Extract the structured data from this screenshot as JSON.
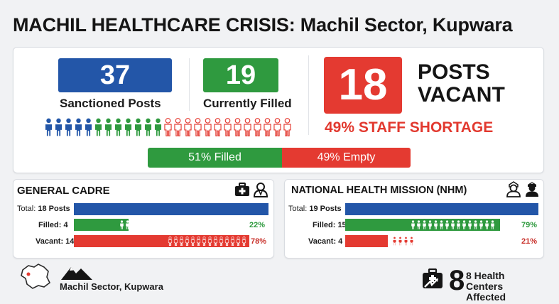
{
  "title": "MACHIL HEALTHCARE CRISIS: Machil Sector, Kupwara",
  "summary": {
    "sanctioned_value": "37",
    "sanctioned_label": "Sanctioned Posts",
    "filled_value": "19",
    "filled_label": "Currently Filled",
    "vacant_value": "18",
    "vacant_label_line1": "POSTS",
    "vacant_label_line2": "VACANT",
    "shortage_text": "49% STAFF SHORTAGE",
    "people_icons": {
      "blue": 5,
      "green": 7,
      "red_outline": 13
    },
    "fill_bar": {
      "filled_text": "51% Filled",
      "empty_text": "49% Empty",
      "filled_fraction": 0.51
    }
  },
  "general_cadre": {
    "title": "GENERAL CADRE",
    "icons": [
      "first-aid-kit-icon",
      "doctor-icon"
    ],
    "total_label": "Total:",
    "total_value": "18 Posts",
    "filled_label": "Filled: 4",
    "filled_pct": "22%",
    "filled_fraction": 0.22,
    "filled_people": 4,
    "vacant_label": "Vacant: 14",
    "vacant_pct": "78%",
    "vacant_fraction": 0.78,
    "vacant_people": 14
  },
  "nhm": {
    "title": "NATIONAL HEALTH MISSION (NHM)",
    "icons": [
      "nurse-icon",
      "nurse-icon"
    ],
    "total_label": "Total:",
    "total_value": "19 Posts",
    "filled_label": "Filled: 15",
    "filled_pct": "79%",
    "filled_fraction": 0.79,
    "filled_people": 15,
    "vacant_label": "Vacant: 4",
    "vacant_pct": "21%",
    "vacant_fraction": 0.21,
    "vacant_people": 4
  },
  "footer": {
    "location": "Machil Sector, Kupwara",
    "health_centers_value": "8",
    "health_centers_label_line1": "8 Health Centers",
    "health_centers_label_line2": "Affected"
  },
  "colors": {
    "blue": "#2356a8",
    "green": "#2f9a3f",
    "red": "#e43a31"
  }
}
